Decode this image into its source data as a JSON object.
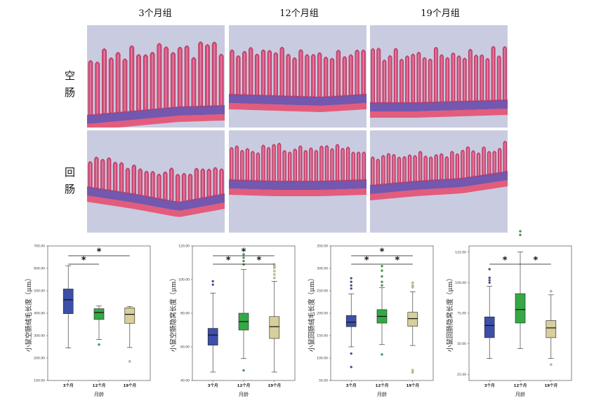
{
  "column_titles": [
    "3个月组",
    "12个月组",
    "19个月组"
  ],
  "row_labels": [
    {
      "line1": "空",
      "line2": "肠"
    },
    {
      "line1": "回",
      "line2": "肠"
    }
  ],
  "micro_colors": {
    "background": "#c9cce0",
    "villus": "#d2507a",
    "villus_edge": "#b5335e",
    "crypt": "#6a4aa8",
    "muscle": "#e8486a"
  },
  "chart_data": [
    {
      "type": "box",
      "ylabel": "小鼠空肠绒毛长度（μm）",
      "xlabel": "月龄",
      "categories": [
        "3个月",
        "12个月",
        "19个月"
      ],
      "ylim": [
        100,
        700
      ],
      "yticks": [
        "100.00",
        "200.00",
        "300.00",
        "400.00",
        "500.00",
        "600.00",
        "700.00"
      ],
      "ytick_values": [
        100,
        200,
        300,
        400,
        500,
        600,
        700
      ],
      "boxes": [
        {
          "min": 245,
          "q1": 398,
          "median": 460,
          "q3": 508,
          "max": 612,
          "outliers": [],
          "color": "#3d4fa8"
        },
        {
          "min": 283,
          "q1": 372,
          "median": 403,
          "q3": 420,
          "max": 432,
          "outliers": [
            260
          ],
          "color": "#35a846"
        },
        {
          "min": 247,
          "q1": 355,
          "median": 395,
          "q3": 424,
          "max": 430,
          "outliers": [
            185
          ],
          "color": "#d7cf9c"
        }
      ],
      "significance": [
        {
          "from": 0,
          "to": 1,
          "label": "*",
          "level": 1
        },
        {
          "from": 0,
          "to": 2,
          "label": "*",
          "level": 2
        }
      ]
    },
    {
      "type": "box",
      "ylabel": "小鼠空肠隐窝长度（μm）",
      "xlabel": "月龄",
      "categories": [
        "3个月",
        "12个月",
        "19个月"
      ],
      "ylim": [
        40,
        120
      ],
      "yticks": [
        "40.00",
        "60.00",
        "80.00",
        "100.00",
        "120.00"
      ],
      "ytick_values": [
        40,
        60,
        80,
        100,
        120
      ],
      "boxes": [
        {
          "min": 45,
          "q1": 61,
          "median": 67,
          "q3": 71,
          "max": 92,
          "outliers": [
            97,
            99
          ],
          "color": "#3d4fa8"
        },
        {
          "min": 53,
          "q1": 70,
          "median": 75,
          "q3": 80,
          "max": 106,
          "outliers": [
            46,
            109,
            111,
            113,
            115
          ],
          "color": "#35a846"
        },
        {
          "min": 45,
          "q1": 65,
          "median": 72,
          "q3": 78,
          "max": 99,
          "outliers": [
            101,
            103,
            105,
            107,
            108,
            109
          ],
          "color": "#d7cf9c"
        }
      ],
      "significance": [
        {
          "from": 0,
          "to": 1,
          "label": "*",
          "level": 1
        },
        {
          "from": 1,
          "to": 2,
          "label": "*",
          "level": 1
        },
        {
          "from": 0,
          "to": 2,
          "label": "*",
          "level": 2
        }
      ]
    },
    {
      "type": "box",
      "ylabel": "小鼠回肠绒毛长度（μm）",
      "xlabel": "月龄",
      "categories": [
        "3个月",
        "12个月",
        "19个月"
      ],
      "ylim": [
        50,
        350
      ],
      "yticks": [
        "50.00",
        "100.00",
        "150.00",
        "200.00",
        "250.00",
        "300.00",
        "350.00"
      ],
      "ytick_values": [
        50,
        100,
        150,
        200,
        250,
        300,
        350
      ],
      "boxes": [
        {
          "min": 125,
          "q1": 170,
          "median": 180,
          "q3": 195,
          "max": 243,
          "outliers": [
            80,
            110,
            255,
            262,
            270,
            278
          ],
          "color": "#3d4fa8"
        },
        {
          "min": 130,
          "q1": 178,
          "median": 193,
          "q3": 208,
          "max": 257,
          "outliers": [
            108,
            262,
            270,
            282,
            295,
            305
          ],
          "color": "#35a846"
        },
        {
          "min": 128,
          "q1": 171,
          "median": 188,
          "q3": 202,
          "max": 248,
          "outliers": [
            68,
            73,
            258,
            262,
            268
          ],
          "color": "#d7cf9c"
        }
      ],
      "significance": [
        {
          "from": 0,
          "to": 1,
          "label": "*",
          "level": 1
        },
        {
          "from": 1,
          "to": 2,
          "label": "*",
          "level": 1
        },
        {
          "from": 0,
          "to": 2,
          "label": "*",
          "level": 2
        }
      ]
    },
    {
      "type": "box",
      "ylabel": "小鼠回肠隐窝长度（μm）",
      "xlabel": "月龄",
      "categories": [
        "3个月",
        "12个月",
        "19个月"
      ],
      "ylim": [
        20,
        130
      ],
      "yticks": [
        "25.00",
        "50.00",
        "75.00",
        "100.00",
        "125.00"
      ],
      "ytick_values": [
        25,
        50,
        75,
        100,
        125
      ],
      "boxes": [
        {
          "min": 38,
          "q1": 55,
          "median": 65,
          "q3": 72,
          "max": 97,
          "outliers": [
            100,
            102,
            104,
            111
          ],
          "color": "#3d4fa8"
        },
        {
          "min": 46,
          "q1": 67,
          "median": 78,
          "q3": 91,
          "max": 125,
          "outliers": [
            139,
            142
          ],
          "color": "#35a846"
        },
        {
          "min": 38,
          "q1": 55,
          "median": 63,
          "q3": 69,
          "max": 90,
          "outliers": [
            33,
            93
          ],
          "color": "#d7cf9c"
        }
      ],
      "significance": [
        {
          "from": 0,
          "to": 1,
          "label": "*",
          "level": 1
        },
        {
          "from": 1,
          "to": 2,
          "label": "*",
          "level": 1
        }
      ]
    }
  ]
}
